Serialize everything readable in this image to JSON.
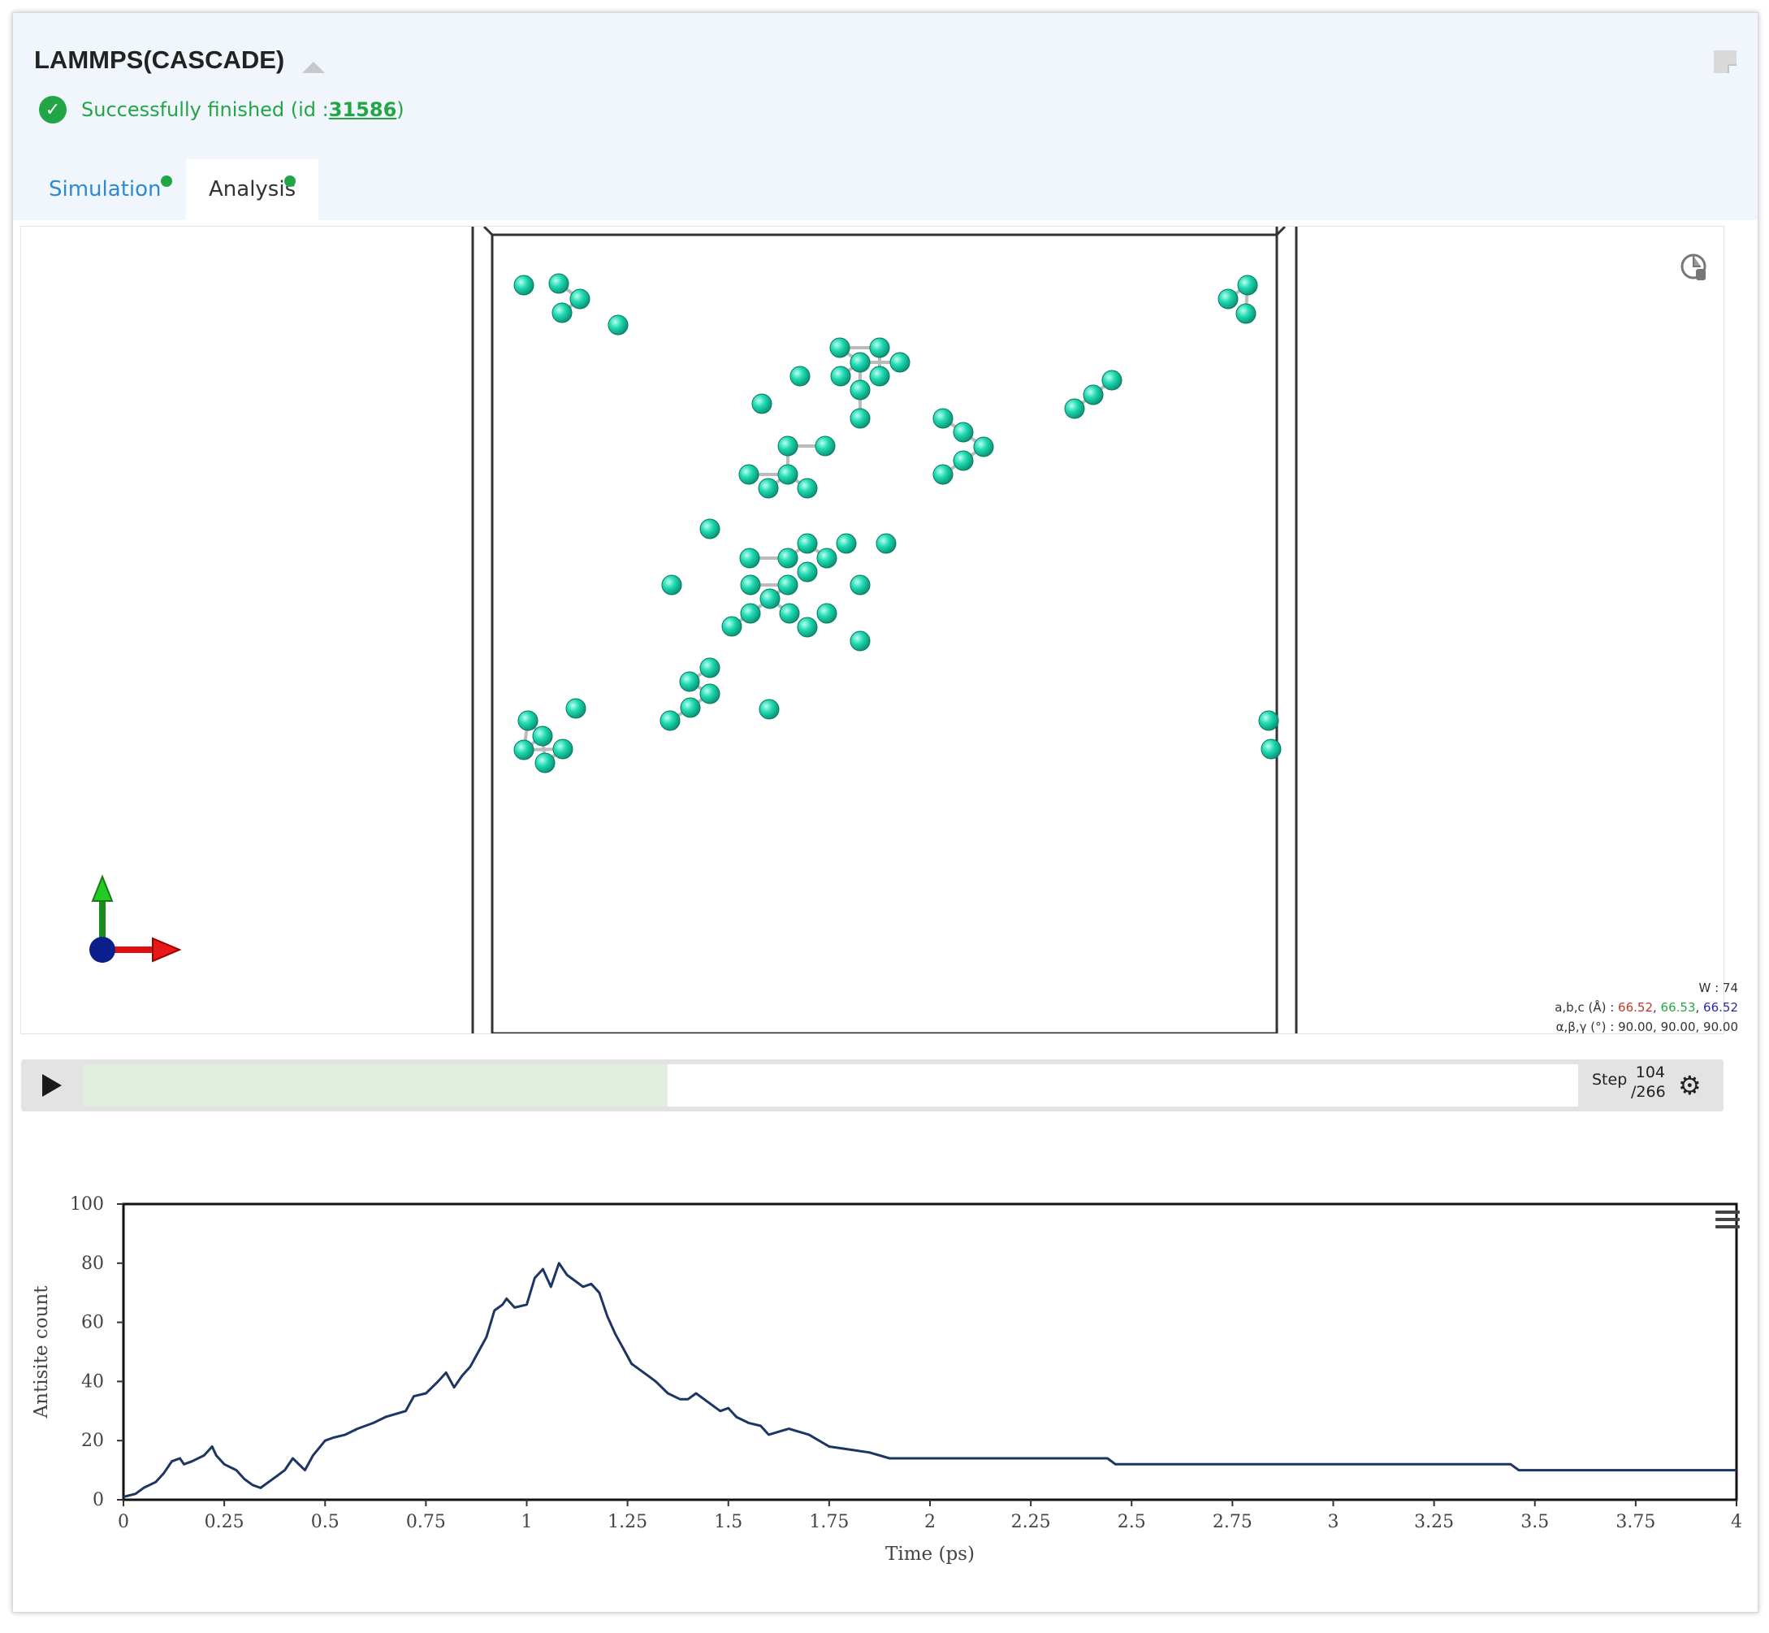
{
  "app": {
    "title": "LAMMPS(CASCADE)",
    "status_text": "Successfully finished (id : ",
    "status_id": "31586",
    "status_close": ")",
    "status_color": "#22a645"
  },
  "tabs": [
    {
      "label": "Simulation",
      "active": false,
      "has_dot": true
    },
    {
      "label": "Analysis",
      "active": true,
      "has_dot": true
    }
  ],
  "viewer": {
    "icons": [
      "rotate-pointer-icon",
      "axes-gizmo-icon"
    ],
    "atom_color": "#1ed9b0",
    "cell": {
      "w_label": "W : 74",
      "abc_label": "a,b,c (Å) : ",
      "a": "66.52",
      "b": "66.53",
      "c": "66.52",
      "angles_label": "α,β,γ (°) : 90.00, 90.00, 90.00",
      "a_color": "#c0392b",
      "b_color": "#27a844",
      "c_color": "#2a2aa8"
    }
  },
  "player": {
    "step_label": "Step",
    "step_current": "104",
    "step_total": "/266",
    "progress": 0.391
  },
  "chart_data": {
    "type": "line",
    "xlabel": "Time (ps)",
    "ylabel": "Antisite count",
    "xlim": [
      0,
      4
    ],
    "ylim": [
      0,
      100
    ],
    "x_ticks": [
      "0",
      "0.25",
      "0.5",
      "0.75",
      "1",
      "1.25",
      "1.5",
      "1.75",
      "2",
      "2.25",
      "2.5",
      "2.75",
      "3",
      "3.25",
      "3.5",
      "3.75",
      "4"
    ],
    "y_ticks": [
      "0",
      "20",
      "40",
      "60",
      "80",
      "100"
    ],
    "line_color": "#1d3563",
    "series": [
      {
        "x": [
          0,
          0.03,
          0.05,
          0.08,
          0.1,
          0.12,
          0.14,
          0.15,
          0.17,
          0.2,
          0.22,
          0.23,
          0.25,
          0.28,
          0.3,
          0.32,
          0.34,
          0.36,
          0.38,
          0.4,
          0.42,
          0.45,
          0.47,
          0.5,
          0.52,
          0.55,
          0.58,
          0.6,
          0.62,
          0.65,
          0.7,
          0.72,
          0.75,
          0.78,
          0.8,
          0.82,
          0.84,
          0.86,
          0.88,
          0.9,
          0.92,
          0.94,
          0.95,
          0.97,
          1,
          1.02,
          1.04,
          1.06,
          1.08,
          1.1,
          1.12,
          1.14,
          1.16,
          1.18,
          1.2,
          1.22,
          1.24,
          1.26,
          1.28,
          1.3,
          1.32,
          1.35,
          1.38,
          1.4,
          1.42,
          1.45,
          1.48,
          1.5,
          1.52,
          1.55,
          1.58,
          1.6,
          1.65,
          1.7,
          1.75,
          1.8,
          1.85,
          1.9,
          2,
          2.25,
          2.44,
          2.46,
          2.75,
          3,
          3.25,
          3.44,
          3.46,
          3.75,
          4
        ],
        "y": [
          1,
          2,
          4,
          6,
          9,
          13,
          14,
          12,
          13,
          15,
          18,
          15,
          12,
          10,
          7,
          5,
          4,
          6,
          8,
          10,
          14,
          10,
          15,
          20,
          21,
          22,
          24,
          25,
          26,
          28,
          30,
          35,
          36,
          40,
          43,
          38,
          42,
          45,
          50,
          55,
          64,
          66,
          68,
          65,
          66,
          75,
          78,
          72,
          80,
          76,
          74,
          72,
          73,
          70,
          62,
          56,
          51,
          46,
          44,
          42,
          40,
          36,
          34,
          34,
          36,
          33,
          30,
          31,
          28,
          26,
          25,
          22,
          24,
          22,
          18,
          17,
          16,
          14,
          14,
          14,
          14,
          12,
          12,
          12,
          12,
          12,
          10,
          10,
          10
        ]
      }
    ]
  }
}
